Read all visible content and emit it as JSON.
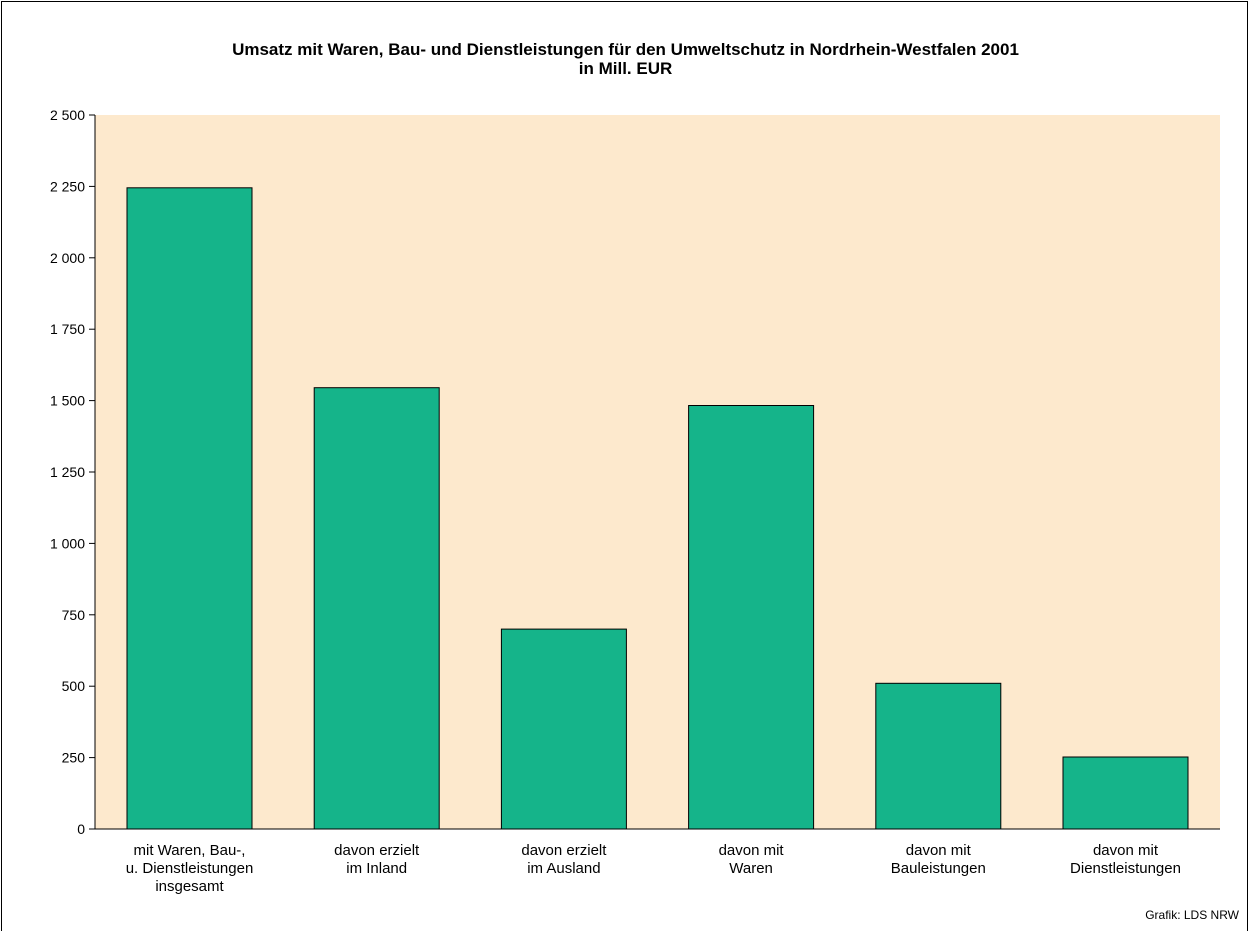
{
  "chart_data": {
    "type": "bar",
    "title": "Umsatz mit Waren, Bau- und Dienstleistungen für den Umweltschutz in Nordrhein-Westfalen 2001",
    "subtitle": "in Mill. EUR",
    "categories": [
      [
        "mit Waren, Bau-,",
        "u. Dienstleistungen",
        "insgesamt"
      ],
      [
        "davon erzielt",
        "im Inland"
      ],
      [
        "davon erzielt",
        "im Ausland"
      ],
      [
        "davon mit",
        "Waren"
      ],
      [
        "davon mit",
        "Bauleistungen"
      ],
      [
        "davon mit",
        "Dienstleistungen"
      ]
    ],
    "values": [
      2245,
      1545,
      700,
      1483,
      510,
      252
    ],
    "ylim": [
      0,
      2500
    ],
    "yticks": [
      0,
      250,
      500,
      750,
      1000,
      1250,
      1500,
      1750,
      2000,
      2250,
      2500
    ],
    "ytick_labels": [
      "0",
      "250",
      "500",
      "750",
      "1 000",
      "1 250",
      "1 500",
      "1 750",
      "2 000",
      "2 250",
      "2 500"
    ],
    "xlabel": "",
    "ylabel": "",
    "grid": false,
    "colors": {
      "bar": "#15b48a",
      "plot_background": "#fde9cd",
      "bar_outline": "#000000"
    }
  },
  "source": "Grafik: LDS NRW"
}
